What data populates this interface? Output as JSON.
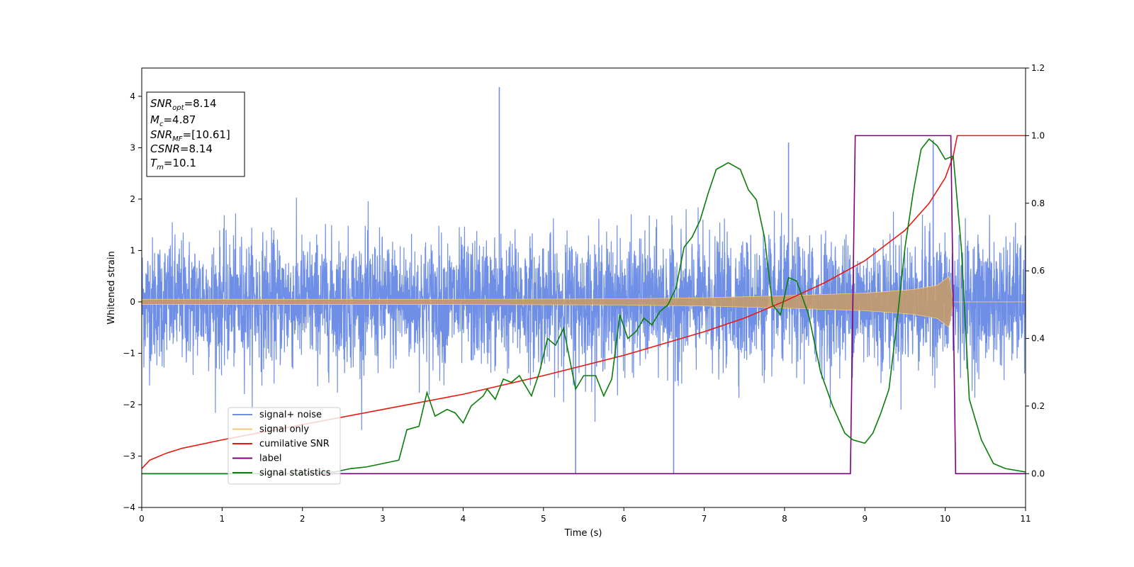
{
  "chart_data": {
    "type": "line",
    "xlabel": "Time (s)",
    "ylabel": "Whitened strain",
    "xlim": [
      0,
      11
    ],
    "ylim": [
      -4,
      4.55
    ],
    "y2lim": [
      -0.1,
      1.2
    ],
    "x_ticks": [
      "0",
      "1",
      "2",
      "3",
      "4",
      "5",
      "6",
      "7",
      "8",
      "9",
      "10",
      "11"
    ],
    "y_ticks": [
      "−4",
      "−3",
      "−2",
      "−1",
      "0",
      "1",
      "2",
      "3",
      "4"
    ],
    "y2_ticks": [
      "0.0",
      "0.2",
      "0.4",
      "0.6",
      "0.8",
      "1.0",
      "1.2"
    ],
    "annotation": {
      "lines": [
        {
          "var": "SNR",
          "sub": "opt",
          "value": "=8.14"
        },
        {
          "var": "M",
          "sub": "c",
          "value": "=4.87"
        },
        {
          "var": "SNR",
          "sub": "MF",
          "value": "=[10.61]"
        },
        {
          "var": "CSNR",
          "sub": "",
          "value": "=8.14"
        },
        {
          "var": "T",
          "sub": "m",
          "value": "=10.1"
        }
      ]
    },
    "legend": {
      "placement": "lower-left",
      "entries": [
        {
          "label": "signal+ noise",
          "color": "#6f8fe6"
        },
        {
          "label": "signal only",
          "color": "#f5c87a"
        },
        {
          "label": "cumilative SNR",
          "color": "#e8190f"
        },
        {
          "label": "label",
          "color": "#800080"
        },
        {
          "label": "signal statistics",
          "color": "#0a7d0a"
        }
      ]
    },
    "series": [
      {
        "name": "signal+ noise",
        "axis": "left",
        "color": "#6f8fe6",
        "noise_std": 1.0,
        "t_range": [
          0,
          11
        ],
        "peaks": [
          [
            4.45,
            4.18
          ],
          [
            5.4,
            -3.35
          ],
          [
            6.62,
            -3.35
          ],
          [
            8.05,
            3.1
          ],
          [
            9.85,
            3.15
          ]
        ]
      },
      {
        "name": "signal only",
        "axis": "left",
        "color": "#f5c87a",
        "chirp_end": 10.1,
        "envelope": [
          [
            0,
            0.05
          ],
          [
            4,
            0.05
          ],
          [
            6,
            0.06
          ],
          [
            7,
            0.08
          ],
          [
            8,
            0.12
          ],
          [
            9,
            0.17
          ],
          [
            9.6,
            0.24
          ],
          [
            9.9,
            0.32
          ],
          [
            10.05,
            0.5
          ],
          [
            10.1,
            0.0
          ],
          [
            11,
            0.0
          ]
        ]
      },
      {
        "name": "cumilative SNR",
        "axis": "right",
        "color": "#e8190f",
        "points": [
          [
            0,
            0.015
          ],
          [
            0.1,
            0.04
          ],
          [
            0.3,
            0.06
          ],
          [
            0.5,
            0.075
          ],
          [
            1,
            0.1
          ],
          [
            2,
            0.145
          ],
          [
            3,
            0.19
          ],
          [
            4,
            0.235
          ],
          [
            5,
            0.29
          ],
          [
            6,
            0.35
          ],
          [
            7,
            0.42
          ],
          [
            7.5,
            0.46
          ],
          [
            8,
            0.51
          ],
          [
            8.5,
            0.565
          ],
          [
            9,
            0.63
          ],
          [
            9.5,
            0.72
          ],
          [
            9.8,
            0.8
          ],
          [
            10,
            0.875
          ],
          [
            10.1,
            0.94
          ],
          [
            10.15,
            1.0
          ],
          [
            11,
            1.0
          ]
        ]
      },
      {
        "name": "label",
        "axis": "right",
        "color": "#800080",
        "points": [
          [
            0,
            0
          ],
          [
            8.82,
            0
          ],
          [
            8.88,
            1.0
          ],
          [
            10.07,
            1.0
          ],
          [
            10.13,
            0
          ],
          [
            11,
            0
          ]
        ]
      },
      {
        "name": "signal statistics",
        "axis": "right",
        "color": "#0a7d0a",
        "points": [
          [
            0,
            0
          ],
          [
            2.0,
            0.0
          ],
          [
            2.4,
            0.005
          ],
          [
            2.6,
            0.015
          ],
          [
            2.8,
            0.02
          ],
          [
            3.0,
            0.03
          ],
          [
            3.2,
            0.04
          ],
          [
            3.3,
            0.13
          ],
          [
            3.45,
            0.14
          ],
          [
            3.55,
            0.24
          ],
          [
            3.65,
            0.17
          ],
          [
            3.8,
            0.19
          ],
          [
            3.9,
            0.18
          ],
          [
            4.0,
            0.15
          ],
          [
            4.1,
            0.2
          ],
          [
            4.25,
            0.23
          ],
          [
            4.3,
            0.25
          ],
          [
            4.4,
            0.22
          ],
          [
            4.5,
            0.28
          ],
          [
            4.6,
            0.27
          ],
          [
            4.7,
            0.29
          ],
          [
            4.85,
            0.23
          ],
          [
            4.95,
            0.3
          ],
          [
            5.05,
            0.4
          ],
          [
            5.15,
            0.38
          ],
          [
            5.25,
            0.43
          ],
          [
            5.4,
            0.25
          ],
          [
            5.5,
            0.29
          ],
          [
            5.65,
            0.29
          ],
          [
            5.75,
            0.23
          ],
          [
            5.85,
            0.28
          ],
          [
            5.95,
            0.47
          ],
          [
            6.05,
            0.4
          ],
          [
            6.15,
            0.42
          ],
          [
            6.25,
            0.46
          ],
          [
            6.35,
            0.44
          ],
          [
            6.45,
            0.48
          ],
          [
            6.55,
            0.5
          ],
          [
            6.65,
            0.55
          ],
          [
            6.75,
            0.67
          ],
          [
            6.85,
            0.7
          ],
          [
            6.95,
            0.75
          ],
          [
            7.05,
            0.83
          ],
          [
            7.15,
            0.9
          ],
          [
            7.3,
            0.92
          ],
          [
            7.45,
            0.9
          ],
          [
            7.55,
            0.84
          ],
          [
            7.65,
            0.81
          ],
          [
            7.75,
            0.7
          ],
          [
            7.85,
            0.5
          ],
          [
            7.95,
            0.47
          ],
          [
            8.05,
            0.58
          ],
          [
            8.15,
            0.57
          ],
          [
            8.3,
            0.47
          ],
          [
            8.45,
            0.3
          ],
          [
            8.6,
            0.2
          ],
          [
            8.75,
            0.12
          ],
          [
            8.85,
            0.1
          ],
          [
            9.0,
            0.09
          ],
          [
            9.1,
            0.12
          ],
          [
            9.2,
            0.18
          ],
          [
            9.3,
            0.25
          ],
          [
            9.4,
            0.45
          ],
          [
            9.5,
            0.67
          ],
          [
            9.6,
            0.83
          ],
          [
            9.7,
            0.96
          ],
          [
            9.8,
            0.99
          ],
          [
            9.9,
            0.97
          ],
          [
            10.0,
            0.93
          ],
          [
            10.1,
            0.94
          ],
          [
            10.2,
            0.67
          ],
          [
            10.3,
            0.22
          ],
          [
            10.45,
            0.1
          ],
          [
            10.6,
            0.03
          ],
          [
            10.75,
            0.015
          ],
          [
            11,
            0.005
          ]
        ]
      }
    ]
  }
}
